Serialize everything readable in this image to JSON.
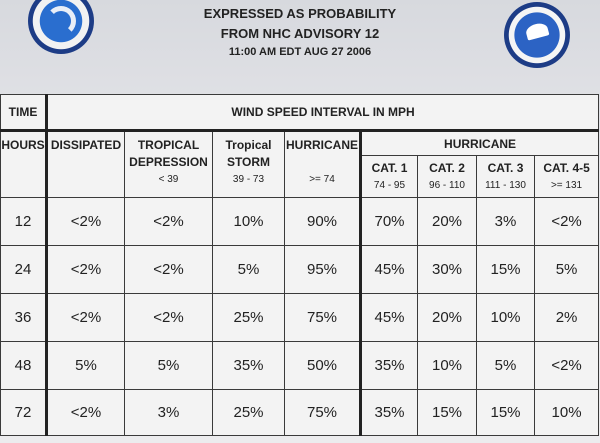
{
  "header": {
    "title_line_1": "EXPRESSED AS PROBABILITY",
    "title_line_2": "FROM NHC ADVISORY  12",
    "title_line_3": "11:00 AM EDT AUG 27 2006"
  },
  "table": {
    "time_label": "TIME",
    "interval_label": "WIND SPEED INTERVAL IN MPH",
    "hours_label": "HOURS",
    "hurricane_group_label": "HURRICANE",
    "columns": [
      {
        "name": "DISSIPATED",
        "name2": "",
        "range": ""
      },
      {
        "name": "TROPICAL",
        "name2": "DEPRESSION",
        "range": "< 39"
      },
      {
        "name": "Tropical",
        "name2": "STORM",
        "range": "39 - 73"
      },
      {
        "name": "HURRICANE",
        "name2": "",
        "range": ">= 74"
      },
      {
        "name": "CAT. 1",
        "name2": "",
        "range": "74 - 95"
      },
      {
        "name": "CAT. 2",
        "name2": "",
        "range": "96 - 110"
      },
      {
        "name": "CAT. 3",
        "name2": "",
        "range": "111 - 130"
      },
      {
        "name": "CAT. 4-5",
        "name2": "",
        "range": ">= 131"
      }
    ],
    "rows": [
      {
        "hours": "12",
        "values": [
          "<2%",
          "<2%",
          "10%",
          "90%",
          "70%",
          "20%",
          "3%",
          "<2%"
        ]
      },
      {
        "hours": "24",
        "values": [
          "<2%",
          "<2%",
          "5%",
          "95%",
          "45%",
          "30%",
          "15%",
          "5%"
        ]
      },
      {
        "hours": "36",
        "values": [
          "<2%",
          "<2%",
          "25%",
          "75%",
          "45%",
          "20%",
          "10%",
          "2%"
        ]
      },
      {
        "hours": "48",
        "values": [
          "5%",
          "5%",
          "35%",
          "50%",
          "35%",
          "10%",
          "5%",
          "<2%"
        ]
      },
      {
        "hours": "72",
        "values": [
          "<2%",
          "3%",
          "25%",
          "75%",
          "35%",
          "15%",
          "15%",
          "10%"
        ]
      }
    ]
  }
}
